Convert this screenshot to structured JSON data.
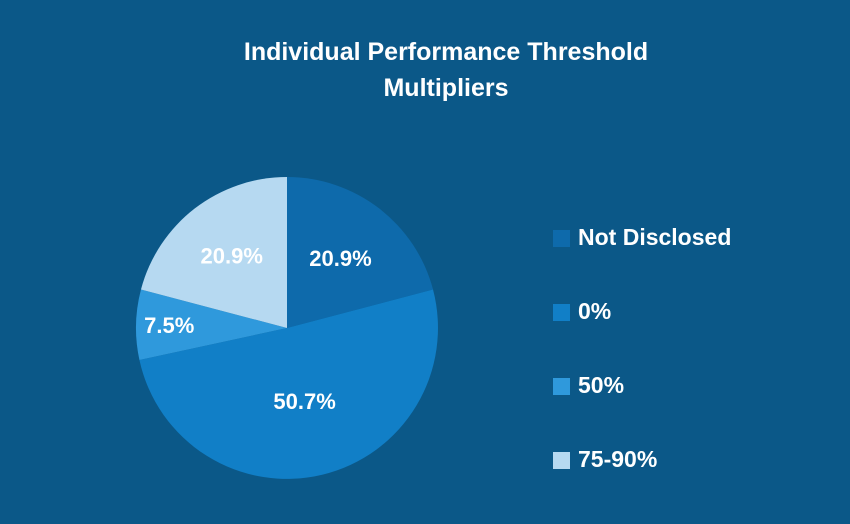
{
  "chart_data": {
    "type": "pie",
    "title_lines": [
      "Individual Performance Threshold",
      "Multipliers"
    ],
    "slices": [
      {
        "name": "Not Disclosed",
        "value": 20.9,
        "label": "20.9%",
        "color": "#0e6aab"
      },
      {
        "name": "0%",
        "value": 50.7,
        "label": "50.7%",
        "color": "#117fc7"
      },
      {
        "name": "50%",
        "value": 7.5,
        "label": "7.5%",
        "color": "#2f99dc"
      },
      {
        "name": "75-90%",
        "value": 20.9,
        "label": "20.9%",
        "color": "#b6d9f1"
      }
    ],
    "legend_position": "right"
  }
}
